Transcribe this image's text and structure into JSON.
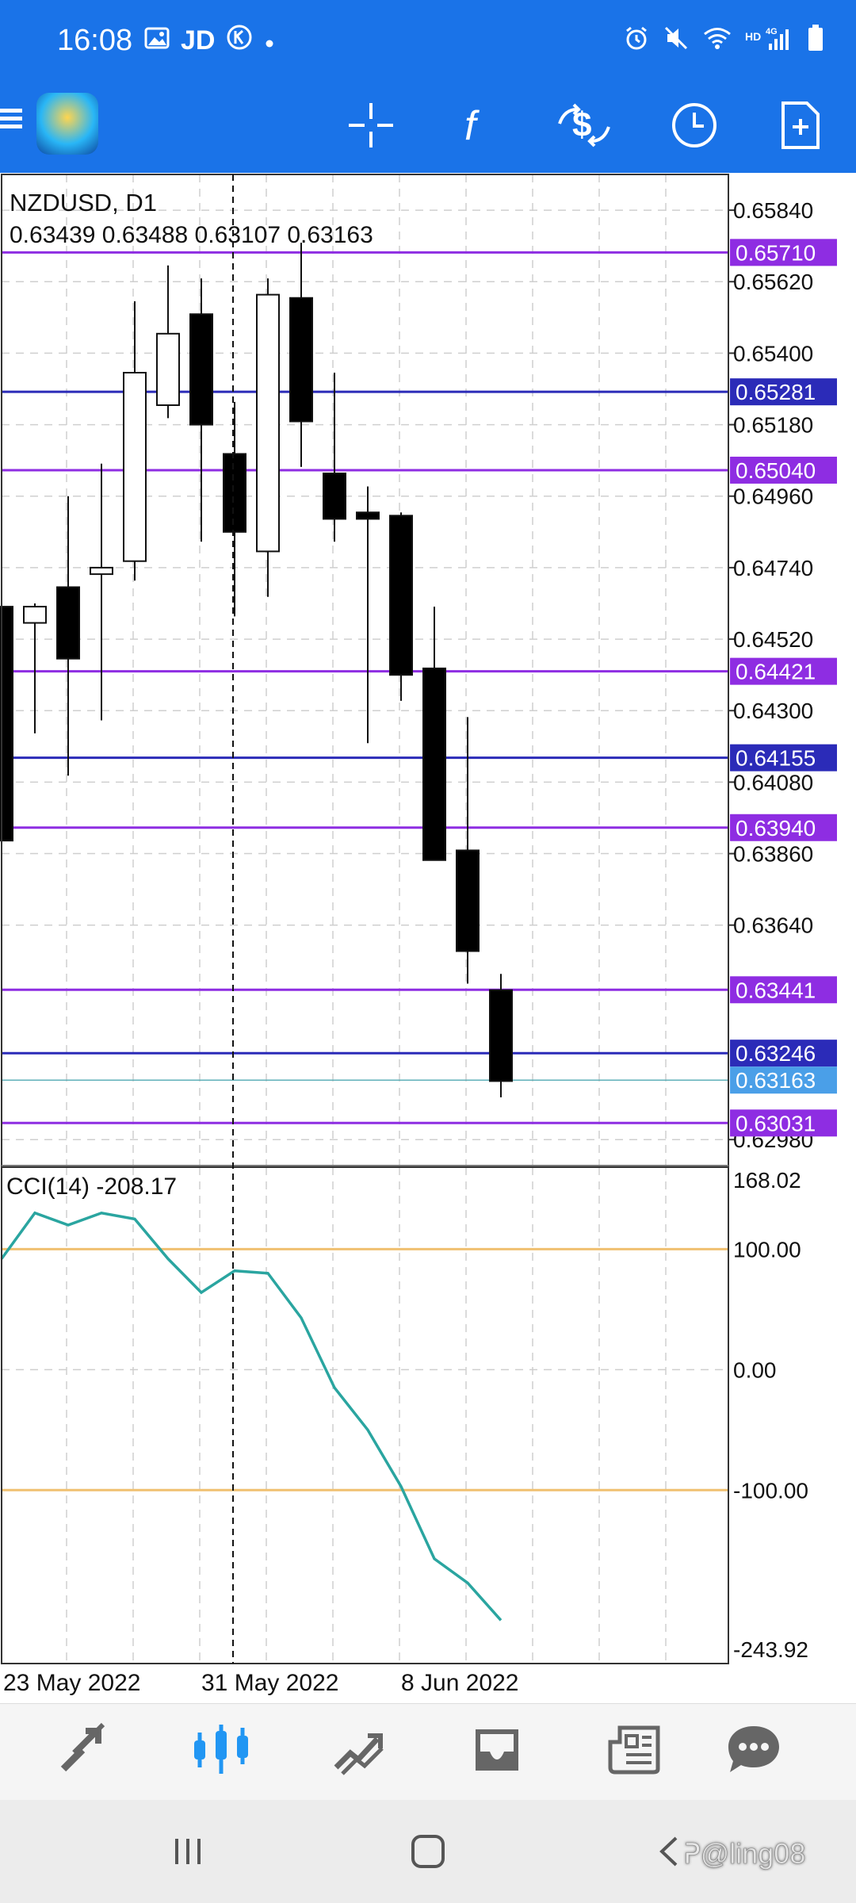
{
  "status_bar": {
    "time": "16:08",
    "app_text": "JD"
  },
  "chart": {
    "symbol": "NZDUSD, D1",
    "ohlc": "0.63439 0.63488 0.63107 0.63163",
    "price_axis_labels": [
      "0.65840",
      "0.65620",
      "0.65400",
      "0.65180",
      "0.64960",
      "0.64740",
      "0.64520",
      "0.64300",
      "0.64080",
      "0.63860",
      "0.63640",
      "0.62980"
    ],
    "price_line_labels": [
      {
        "text": "0.65710",
        "color": "#8e2de2"
      },
      {
        "text": "0.65281",
        "color": "#2b2bb8"
      },
      {
        "text": "0.65040",
        "color": "#8e2de2"
      },
      {
        "text": "0.64421",
        "color": "#8e2de2"
      },
      {
        "text": "0.64155",
        "color": "#2b2bb8"
      },
      {
        "text": "0.63940",
        "color": "#8e2de2"
      },
      {
        "text": "0.63441",
        "color": "#8e2de2"
      },
      {
        "text": "0.63246",
        "color": "#2b2bb8"
      },
      {
        "text": "0.63163",
        "color": "#4a9fe8"
      },
      {
        "text": "0.63031",
        "color": "#8e2de2"
      }
    ],
    "date_labels": [
      "23 May 2022",
      "31 May 2022",
      "8 Jun 2022"
    ],
    "indicator": {
      "name": "CCI(14) -208.17",
      "axis_labels": [
        "168.02",
        "100.00",
        "0.00",
        "-100.00",
        "-243.92"
      ],
      "level_color": "#f0c070",
      "line_color": "#2aa5a0"
    }
  },
  "chart_data": {
    "type": "candlestick",
    "title": "NZDUSD, D1",
    "ylim": [
      0.629,
      0.6595
    ],
    "candles": [
      {
        "open": 0.6462,
        "high": 0.6482,
        "low": 0.6382,
        "close": 0.639
      },
      {
        "open": 0.6457,
        "high": 0.6463,
        "low": 0.6423,
        "close": 0.6462
      },
      {
        "open": 0.6468,
        "high": 0.6496,
        "low": 0.641,
        "close": 0.6446
      },
      {
        "open": 0.6472,
        "high": 0.6506,
        "low": 0.6427,
        "close": 0.6474
      },
      {
        "open": 0.6476,
        "high": 0.6556,
        "low": 0.647,
        "close": 0.6534
      },
      {
        "open": 0.6524,
        "high": 0.6567,
        "low": 0.652,
        "close": 0.6546
      },
      {
        "open": 0.6552,
        "high": 0.6563,
        "low": 0.6482,
        "close": 0.6518
      },
      {
        "open": 0.6509,
        "high": 0.6525,
        "low": 0.6459,
        "close": 0.6485
      },
      {
        "open": 0.6479,
        "high": 0.6563,
        "low": 0.6465,
        "close": 0.6558
      },
      {
        "open": 0.6557,
        "high": 0.6574,
        "low": 0.6505,
        "close": 0.6519
      },
      {
        "open": 0.6503,
        "high": 0.6534,
        "low": 0.6482,
        "close": 0.6489
      },
      {
        "open": 0.6491,
        "high": 0.6499,
        "low": 0.642,
        "close": 0.6489
      },
      {
        "open": 0.649,
        "high": 0.6491,
        "low": 0.6433,
        "close": 0.6441
      },
      {
        "open": 0.6443,
        "high": 0.6462,
        "low": 0.6385,
        "close": 0.6384
      },
      {
        "open": 0.6387,
        "high": 0.6428,
        "low": 0.6346,
        "close": 0.6356
      },
      {
        "open": 0.6344,
        "high": 0.6349,
        "low": 0.6311,
        "close": 0.6316
      }
    ],
    "cci": {
      "name": "CCI(14)",
      "ylim": [
        -243.92,
        168.02
      ],
      "levels": [
        100,
        -100
      ],
      "values": [
        92,
        130,
        120,
        130,
        125,
        92,
        64,
        82,
        80,
        43,
        -15,
        -50,
        -97,
        -157,
        -177,
        -208
      ]
    }
  }
}
